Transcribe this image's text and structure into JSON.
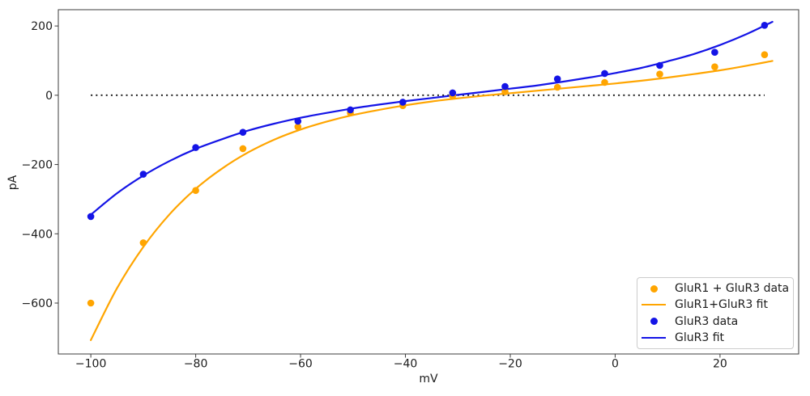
{
  "chart_data": {
    "type": "scatter",
    "xlabel": "mV",
    "ylabel": "pA",
    "xlim": [
      -106.2,
      35.0
    ],
    "ylim": [
      -747,
      247
    ],
    "grid": false,
    "legend_position": "lower right",
    "xticks": {
      "values": [
        -100,
        -80,
        -60,
        -40,
        -20,
        0,
        20
      ],
      "labels": [
        "−100",
        "−80",
        "−60",
        "−40",
        "−20",
        "0",
        "20"
      ]
    },
    "yticks": {
      "values": [
        200,
        0,
        -200,
        -400,
        -600
      ],
      "labels": [
        "200",
        "0",
        "−200",
        "−400",
        "−600"
      ]
    },
    "zero_line": {
      "value": 0,
      "x_range": [
        -100,
        28.5
      ],
      "style": "dotted",
      "color": "#111111"
    },
    "x_mV": [
      -100,
      -90,
      -80,
      -71,
      -60.5,
      -50.5,
      -40.5,
      -31,
      -21,
      -11,
      -2,
      8.5,
      19,
      28.5
    ],
    "fit_x_mV": [
      -100,
      -95,
      -90,
      -85,
      -80,
      -75,
      -70,
      -65,
      -60,
      -55,
      -50,
      -45,
      -40,
      -35,
      -30,
      -25,
      -20,
      -15,
      -10,
      -5,
      0,
      5,
      10,
      15,
      20,
      25,
      30
    ],
    "series": [
      {
        "name": "GluR1 + GluR3 data",
        "kind": "scatter",
        "color": "#ffa500",
        "values": [
          -600,
          -426,
          -275,
          -154,
          -91,
          -51,
          -30,
          -2,
          10,
          23,
          37,
          61,
          82,
          117
        ]
      },
      {
        "name": "GluR1+GluR3 fit",
        "kind": "line",
        "color": "#ffa500",
        "values": [
          -707,
          -557,
          -438,
          -344,
          -270,
          -212,
          -165,
          -128,
          -99,
          -76,
          -57,
          -42,
          -29,
          -18,
          -9,
          -1,
          6,
          13,
          20,
          27,
          34,
          42,
          51,
          61,
          72,
          85,
          99
        ]
      },
      {
        "name": "GluR3 data",
        "kind": "scatter",
        "color": "#1414e6",
        "values": [
          -350,
          -228,
          -151,
          -107,
          -75,
          -42,
          -20,
          7,
          25,
          47,
          63,
          86,
          124,
          202
        ]
      },
      {
        "name": "GluR3 fit",
        "kind": "line",
        "color": "#1414e6",
        "values": [
          -345,
          -283,
          -232,
          -190,
          -155,
          -127,
          -102,
          -82,
          -65,
          -51,
          -38,
          -27,
          -17,
          -8,
          1,
          10,
          19,
          28,
          39,
          51,
          64,
          79,
          98,
          119,
          145,
          176,
          212
        ]
      }
    ]
  }
}
